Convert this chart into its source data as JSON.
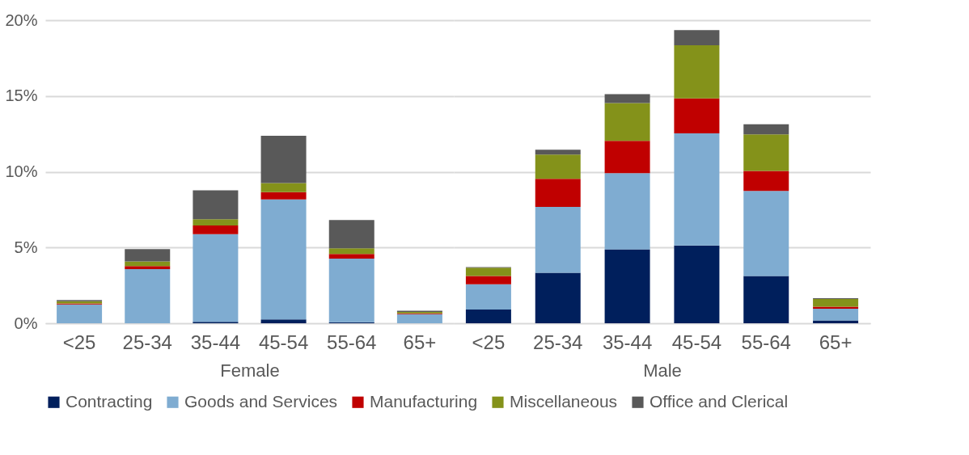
{
  "chart_data": [
    {
      "type": "bar",
      "stacked": true,
      "xlabel": "Female",
      "categories": [
        "<25",
        "25-34",
        "35-44",
        "45-54",
        "55-64",
        "65+"
      ],
      "series": [
        {
          "name": "Contracting",
          "color": "#001f5c",
          "values": [
            null,
            null,
            0.09,
            0.26,
            0.07,
            null
          ]
        },
        {
          "name": "Goods and Services",
          "color": "#7facd1",
          "values": [
            1.24,
            3.58,
            5.79,
            7.91,
            4.2,
            0.6
          ]
        },
        {
          "name": "Manufacturing",
          "color": "#c00000",
          "values": [
            0.07,
            0.19,
            0.57,
            0.49,
            0.3,
            0.05
          ]
        },
        {
          "name": "Miscellaneous",
          "color": "#84921a",
          "values": [
            0.14,
            0.31,
            0.42,
            0.59,
            0.38,
            0.1
          ]
        },
        {
          "name": "Office and Clerical",
          "color": "#595959",
          "values": [
            0.09,
            0.82,
            1.91,
            3.13,
            1.87,
            0.08
          ]
        }
      ],
      "ylim": [
        0,
        20
      ],
      "yticks": [
        {
          "value": 0,
          "label": "0%"
        },
        {
          "value": 5,
          "label": "5%"
        },
        {
          "value": 10,
          "label": "10%"
        },
        {
          "value": 15,
          "label": "15%"
        },
        {
          "value": 20,
          "label": "20%"
        }
      ],
      "grid": "y",
      "legend": "bottom"
    },
    {
      "type": "bar",
      "stacked": true,
      "xlabel": "Male",
      "categories": [
        "<25",
        "25-34",
        "35-44",
        "45-54",
        "55-64",
        "65+"
      ],
      "series": [
        {
          "name": "Contracting",
          "color": "#001f5c",
          "values": [
            0.91,
            3.34,
            4.88,
            5.14,
            3.12,
            0.19
          ]
        },
        {
          "name": "Goods and Services",
          "color": "#7facd1",
          "values": [
            1.67,
            4.34,
            5.03,
            7.4,
            5.62,
            0.77
          ]
        },
        {
          "name": "Manufacturing",
          "color": "#c00000",
          "values": [
            0.54,
            1.86,
            2.13,
            2.3,
            1.32,
            0.13
          ]
        },
        {
          "name": "Miscellaneous",
          "color": "#84921a",
          "values": [
            0.55,
            1.59,
            2.49,
            3.51,
            2.41,
            0.51
          ]
        },
        {
          "name": "Office and Clerical",
          "color": "#595959",
          "values": [
            0.04,
            0.32,
            0.59,
            1.0,
            0.67,
            0.05
          ]
        }
      ],
      "ylim": [
        0,
        20
      ],
      "yticks": [
        0,
        5,
        10,
        15,
        20
      ],
      "grid": "y",
      "legend": "bottom",
      "tick_labels": "x"
    }
  ]
}
